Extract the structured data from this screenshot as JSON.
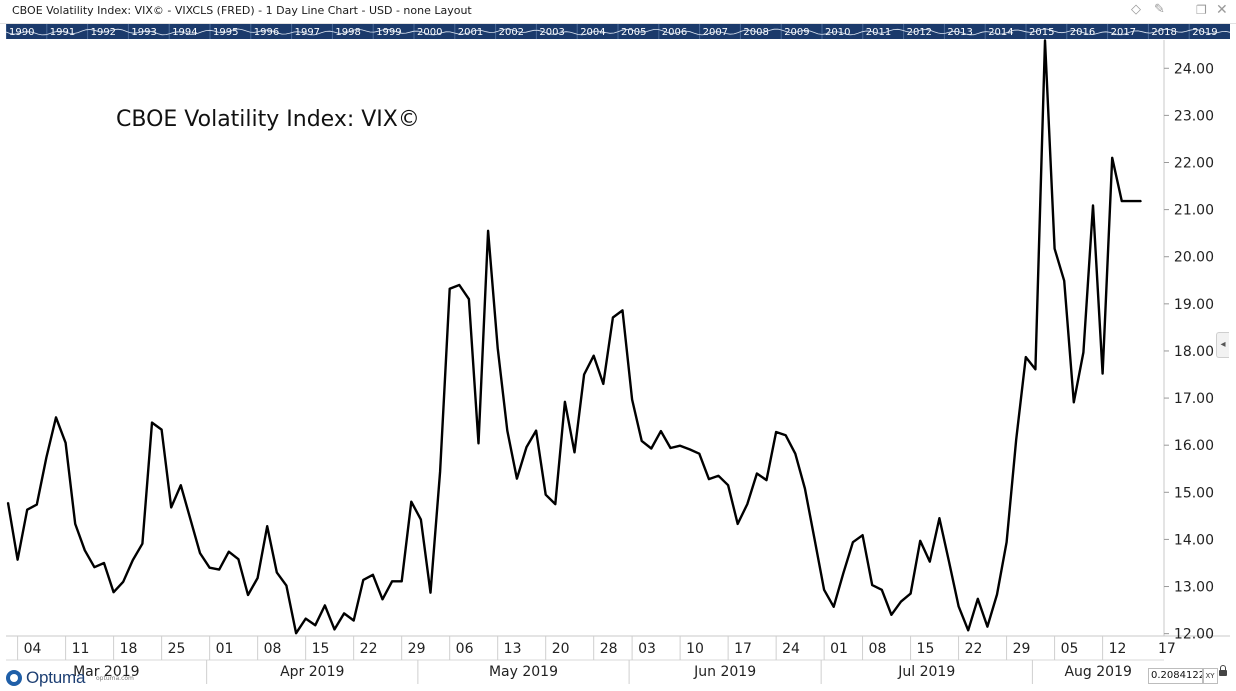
{
  "window": {
    "title": "CBOE Volatility Index: VIX© - VIXCLS (FRED) - 1 Day Line Chart - USD - none Layout"
  },
  "overview_bar": {
    "years": [
      "1990",
      "1991",
      "1992",
      "1993",
      "1994",
      "1995",
      "1996",
      "1997",
      "1998",
      "1999",
      "2000",
      "2001",
      "2002",
      "2003",
      "2004",
      "2005",
      "2006",
      "2007",
      "2008",
      "2009",
      "2010",
      "2011",
      "2012",
      "2013",
      "2014",
      "2015",
      "2016",
      "2017",
      "2018",
      "2019"
    ],
    "background": "#1b3a6b",
    "line_color": "#dfe7f3"
  },
  "logo": {
    "name": "Optuma",
    "url": "optuma.com"
  },
  "status": {
    "crosshair_value": "0.2084122",
    "xy_label": "XY"
  },
  "icons": {
    "diamond": "diamond-icon",
    "pin": "pin-icon",
    "restore": "restore-window-icon",
    "close": "close-icon",
    "collapse": "chevron-left-icon",
    "lock": "lock-icon"
  },
  "chart_data": {
    "type": "line",
    "title": "CBOE Volatility Index: VIX©",
    "xlabel": "",
    "ylabel": "",
    "ylim": [
      11.95,
      24.6
    ],
    "yticks": [
      12,
      13,
      14,
      15,
      16,
      17,
      18,
      19,
      20,
      21,
      22,
      23,
      24
    ],
    "ytick_labels": [
      "12.00",
      "13.00",
      "14.00",
      "15.00",
      "16.00",
      "17.00",
      "18.00",
      "19.00",
      "20.00",
      "21.00",
      "22.00",
      "23.00",
      "24.00"
    ],
    "day_ticks": [
      "04",
      "11",
      "18",
      "25",
      "01",
      "08",
      "15",
      "22",
      "29",
      "06",
      "13",
      "20",
      "28",
      "03",
      "10",
      "17",
      "24",
      "01",
      "08",
      "15",
      "22",
      "29",
      "05",
      "12",
      "17"
    ],
    "month_labels": [
      "Mar 2019",
      "Apr 2019",
      "May 2019",
      "Jun 2019",
      "Jul 2019",
      "Aug 2019"
    ],
    "grid": false,
    "line_color": "#000000",
    "series": [
      {
        "name": "VIXCLS",
        "x": [
          "2019-03-01",
          "2019-03-04",
          "2019-03-05",
          "2019-03-06",
          "2019-03-07",
          "2019-03-08",
          "2019-03-11",
          "2019-03-12",
          "2019-03-13",
          "2019-03-14",
          "2019-03-15",
          "2019-03-18",
          "2019-03-19",
          "2019-03-20",
          "2019-03-21",
          "2019-03-22",
          "2019-03-25",
          "2019-03-26",
          "2019-03-27",
          "2019-03-28",
          "2019-03-29",
          "2019-04-01",
          "2019-04-02",
          "2019-04-03",
          "2019-04-04",
          "2019-04-05",
          "2019-04-08",
          "2019-04-09",
          "2019-04-10",
          "2019-04-11",
          "2019-04-12",
          "2019-04-15",
          "2019-04-16",
          "2019-04-17",
          "2019-04-18",
          "2019-04-19",
          "2019-04-22",
          "2019-04-23",
          "2019-04-24",
          "2019-04-25",
          "2019-04-26",
          "2019-04-29",
          "2019-04-30",
          "2019-05-01",
          "2019-05-02",
          "2019-05-03",
          "2019-05-06",
          "2019-05-07",
          "2019-05-08",
          "2019-05-09",
          "2019-05-10",
          "2019-05-13",
          "2019-05-14",
          "2019-05-15",
          "2019-05-16",
          "2019-05-17",
          "2019-05-20",
          "2019-05-21",
          "2019-05-22",
          "2019-05-23",
          "2019-05-24",
          "2019-05-28",
          "2019-05-29",
          "2019-05-30",
          "2019-05-31",
          "2019-06-03",
          "2019-06-04",
          "2019-06-05",
          "2019-06-06",
          "2019-06-07",
          "2019-06-10",
          "2019-06-11",
          "2019-06-12",
          "2019-06-13",
          "2019-06-14",
          "2019-06-17",
          "2019-06-18",
          "2019-06-19",
          "2019-06-20",
          "2019-06-21",
          "2019-06-24",
          "2019-06-25",
          "2019-06-26",
          "2019-06-27",
          "2019-06-28",
          "2019-07-01",
          "2019-07-02",
          "2019-07-03",
          "2019-07-05",
          "2019-07-08",
          "2019-07-09",
          "2019-07-10",
          "2019-07-11",
          "2019-07-12",
          "2019-07-15",
          "2019-07-16",
          "2019-07-17",
          "2019-07-18",
          "2019-07-19",
          "2019-07-22",
          "2019-07-23",
          "2019-07-24",
          "2019-07-25",
          "2019-07-26",
          "2019-07-29",
          "2019-07-30",
          "2019-07-31",
          "2019-08-01",
          "2019-08-02",
          "2019-08-05",
          "2019-08-06",
          "2019-08-07",
          "2019-08-08",
          "2019-08-09",
          "2019-08-12",
          "2019-08-13",
          "2019-08-14",
          "2019-08-15",
          "2019-08-16"
        ],
        "values": [
          14.78,
          13.57,
          14.63,
          14.74,
          15.74,
          16.59,
          16.05,
          14.33,
          13.77,
          13.41,
          13.5,
          12.88,
          13.1,
          13.56,
          13.91,
          16.48,
          16.33,
          14.68,
          15.15,
          14.43,
          13.71,
          13.4,
          13.36,
          13.74,
          13.58,
          12.82,
          13.18,
          14.28,
          13.3,
          13.02,
          12.01,
          12.32,
          12.18,
          12.6,
          12.09,
          12.43,
          12.28,
          13.14,
          13.25,
          12.73,
          13.11,
          13.11,
          14.8,
          14.42,
          12.87,
          15.44,
          19.32,
          19.4,
          19.1,
          16.04,
          20.55,
          18.06,
          16.31,
          15.29,
          15.96,
          16.31,
          14.95,
          14.75,
          16.92,
          15.85,
          17.5,
          17.9,
          17.3,
          18.71,
          18.86,
          16.97,
          16.09,
          15.93,
          16.3,
          15.94,
          15.99,
          15.91,
          15.82,
          15.28,
          15.35,
          15.15,
          14.33,
          14.75,
          15.4,
          15.26,
          16.28,
          16.21,
          15.82,
          15.08,
          14.01,
          12.93,
          12.57,
          13.28,
          13.94,
          14.09,
          13.03,
          12.93,
          12.4,
          12.68,
          12.85,
          13.97,
          13.53,
          14.45,
          13.53,
          12.58,
          12.07,
          12.74,
          12.15,
          12.83,
          13.94,
          16.12,
          17.87,
          17.61,
          24.59,
          20.17,
          19.49,
          16.91,
          17.97,
          21.09,
          17.52,
          22.1,
          21.18,
          21.18,
          21.18
        ]
      }
    ]
  }
}
